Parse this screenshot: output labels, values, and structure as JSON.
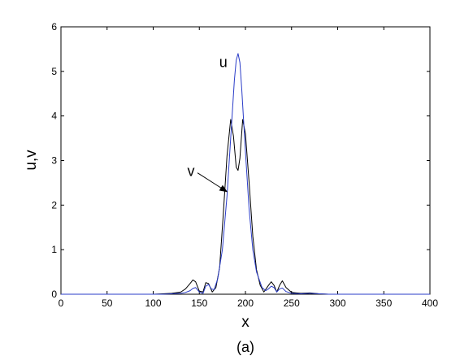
{
  "chart_data": {
    "type": "line",
    "xlabel": "x",
    "ylabel": "u,v",
    "caption": "(a)",
    "xlim": [
      0,
      400
    ],
    "ylim": [
      0,
      6
    ],
    "xticks": [
      0,
      50,
      100,
      150,
      200,
      250,
      300,
      350,
      400
    ],
    "yticks": [
      0,
      1,
      2,
      3,
      4,
      5,
      6
    ],
    "grid": false,
    "legend": "none",
    "annotations": [
      {
        "text": "u",
        "x": 176,
        "y": 5.1,
        "arrow": false
      },
      {
        "text": "v",
        "x": 141,
        "y": 2.65,
        "arrow": true,
        "arrow_to": [
          180,
          2.3
        ]
      }
    ],
    "series": [
      {
        "name": "u",
        "color": "#2a3cc8",
        "x": [
          100,
          110,
          120,
          130,
          135,
          140,
          143,
          146,
          150,
          154,
          157,
          160,
          163,
          166,
          170,
          175,
          180,
          184,
          188,
          190,
          192,
          194,
          196,
          200,
          204,
          208,
          212,
          218,
          222,
          225,
          228,
          231,
          234,
          237,
          240,
          244,
          250,
          260,
          270,
          280,
          290,
          300
        ],
        "y": [
          0.0,
          0.0,
          0.01,
          0.02,
          0.04,
          0.08,
          0.13,
          0.15,
          0.05,
          0.02,
          0.18,
          0.22,
          0.12,
          0.1,
          0.35,
          1.0,
          2.2,
          3.5,
          4.8,
          5.25,
          5.4,
          5.2,
          4.6,
          3.2,
          1.9,
          1.0,
          0.5,
          0.15,
          0.08,
          0.12,
          0.18,
          0.15,
          0.05,
          0.12,
          0.14,
          0.06,
          0.02,
          0.01,
          0.02,
          0.01,
          0.0,
          0.0
        ]
      },
      {
        "name": "v",
        "color": "#000000",
        "x": [
          100,
          110,
          120,
          130,
          135,
          140,
          143,
          146,
          150,
          154,
          157,
          160,
          164,
          168,
          172,
          176,
          180,
          184,
          187,
          190,
          192,
          194,
          197,
          200,
          204,
          208,
          212,
          216,
          220,
          225,
          228,
          231,
          234,
          237,
          240,
          244,
          250,
          260,
          270,
          280,
          290,
          300
        ],
        "y": [
          0.0,
          0.01,
          0.02,
          0.05,
          0.12,
          0.24,
          0.32,
          0.28,
          0.07,
          0.05,
          0.26,
          0.24,
          0.05,
          0.15,
          0.6,
          1.8,
          3.1,
          3.92,
          3.55,
          2.85,
          2.78,
          3.05,
          3.92,
          3.6,
          2.5,
          1.3,
          0.55,
          0.2,
          0.05,
          0.2,
          0.28,
          0.2,
          0.05,
          0.2,
          0.3,
          0.15,
          0.04,
          0.02,
          0.03,
          0.01,
          0.0,
          0.0
        ]
      }
    ]
  }
}
